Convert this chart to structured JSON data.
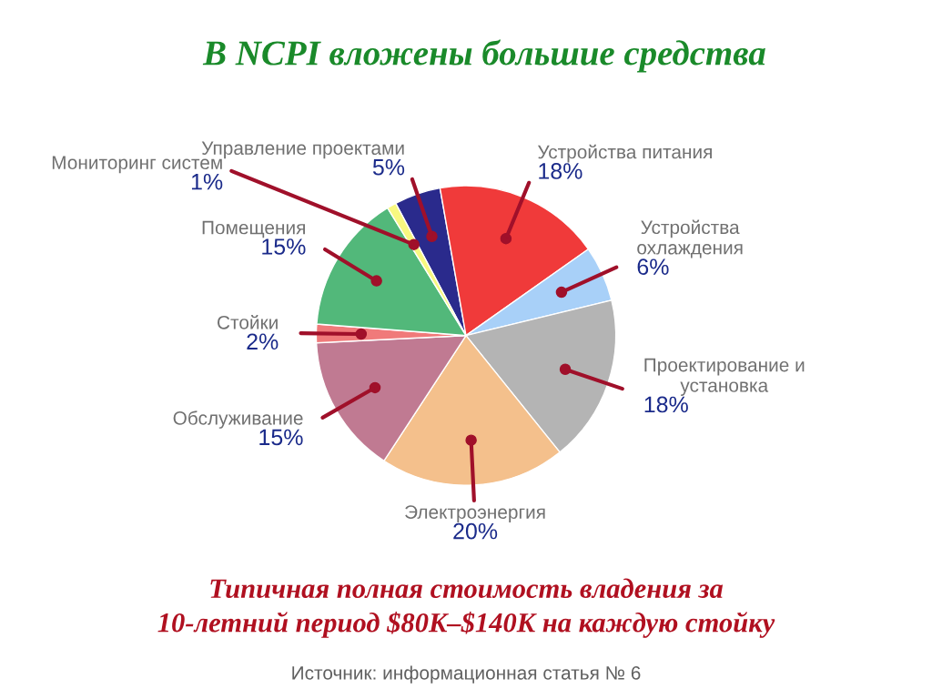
{
  "chart_data": {
    "type": "pie",
    "title": "В NCPI вложены большие средства",
    "categories": [
      "Управление проектами",
      "Устройства питания",
      "Устройства\nохлаждения",
      "Проектирование и\nустановка",
      "Электроэнергия",
      "Обслуживание",
      "Стойки",
      "Помещения",
      "Мониторинг систем"
    ],
    "values": [
      5,
      18,
      6,
      18,
      20,
      15,
      2,
      15,
      1
    ],
    "value_labels": [
      "5%",
      "18%",
      "6%",
      "18%",
      "20%",
      "15%",
      "2%",
      "15%",
      "1%"
    ],
    "colors": [
      "#2a2a8c",
      "#f03a3a",
      "#a8d0f8",
      "#b4b4b4",
      "#f4c08c",
      "#c07a92",
      "#f07a7a",
      "#52b87a",
      "#f8f880"
    ],
    "annotations": [
      "Типичная полная стоимость владения за\n10-летний период $80K–$140K на каждую стойку",
      "Источник: информационная статья № 6"
    ]
  }
}
